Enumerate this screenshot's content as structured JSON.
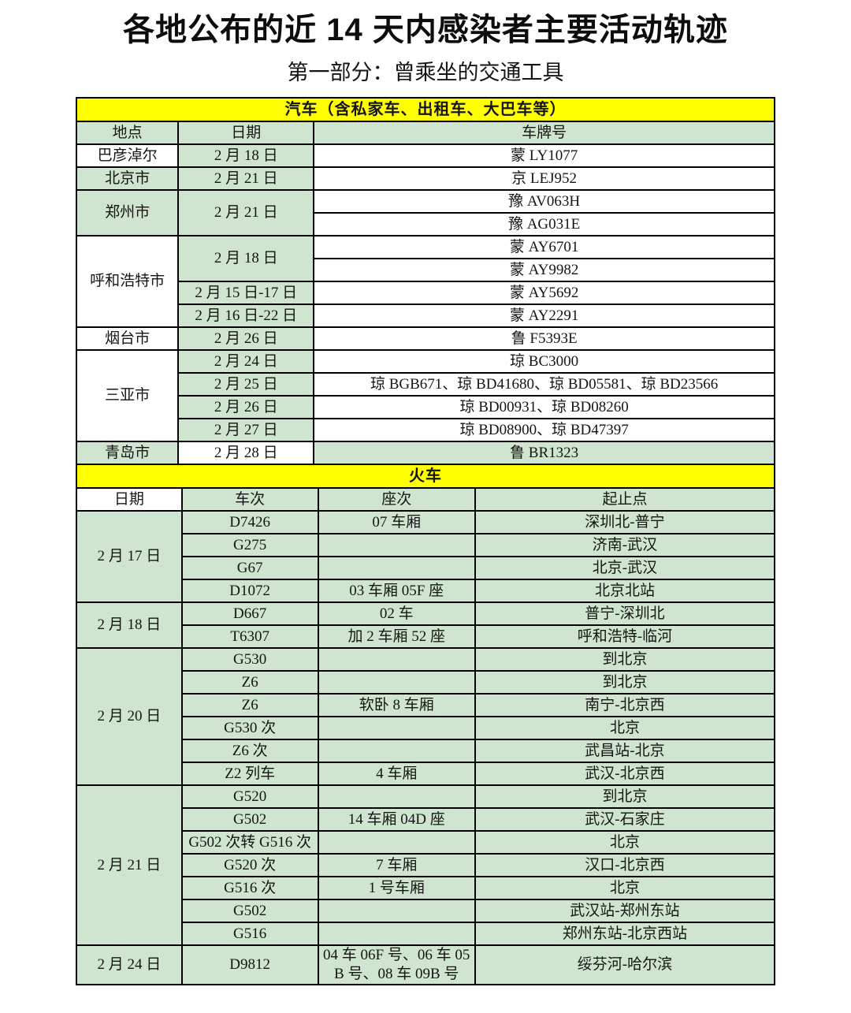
{
  "title": "各地公布的近 14 天内感染者主要活动轨迹",
  "subtitle": "第一部分：曾乘坐的交通工具",
  "colors": {
    "cell_green": "#cfe5cf",
    "banner_yellow": "#ffff00",
    "border_black": "#000000"
  },
  "car_table": {
    "banner": "汽车（含私家车、出租车、大巴车等）",
    "rows": [
      [
        {
          "t": "地点"
        },
        {
          "t": "日期"
        },
        {
          "t": "车牌号"
        }
      ],
      [
        {
          "t": "巴彦淖尔",
          "bg": "w"
        },
        {
          "t": "2 月 18 日"
        },
        {
          "t": "蒙 LY1077",
          "bg": "w"
        }
      ],
      [
        {
          "t": "北京市"
        },
        {
          "t": "2 月 21 日"
        },
        {
          "t": "京 LEJ952",
          "bg": "w"
        }
      ],
      [
        {
          "t": "郑州市",
          "rs": 2
        },
        {
          "t": "2 月 21 日",
          "rs": 2
        },
        {
          "t": "豫 AV063H",
          "bg": "w"
        }
      ],
      [
        {
          "t": "豫 AG031E",
          "bg": "w"
        }
      ],
      [
        {
          "t": "呼和浩特市",
          "bg": "w",
          "rs": 4
        },
        {
          "t": "2 月 18 日",
          "rs": 2
        },
        {
          "t": "蒙 AY6701",
          "bg": "w"
        }
      ],
      [
        {
          "t": "蒙 AY9982",
          "bg": "w"
        }
      ],
      [
        {
          "t": "2 月 15 日-17 日"
        },
        {
          "t": "蒙 AY5692",
          "bg": "w"
        }
      ],
      [
        {
          "t": "2 月 16 日-22 日"
        },
        {
          "t": "蒙 AY2291",
          "bg": "w"
        }
      ],
      [
        {
          "t": "烟台市",
          "bg": "w"
        },
        {
          "t": "2 月 26 日"
        },
        {
          "t": "鲁 F5393E",
          "bg": "w"
        }
      ],
      [
        {
          "t": "三亚市",
          "bg": "w",
          "rs": 4
        },
        {
          "t": "2 月 24 日"
        },
        {
          "t": "琼 BC3000",
          "bg": "w"
        }
      ],
      [
        {
          "t": "2 月 25 日"
        },
        {
          "t": "琼 BGB671、琼 BD41680、琼 BD05581、琼 BD23566",
          "bg": "w"
        }
      ],
      [
        {
          "t": "2 月 26 日"
        },
        {
          "t": "琼 BD00931、琼 BD08260",
          "bg": "w"
        }
      ],
      [
        {
          "t": "2 月 27 日"
        },
        {
          "t": "琼 BD08900、琼 BD47397",
          "bg": "w"
        }
      ],
      [
        {
          "t": "青岛市"
        },
        {
          "t": "2 月 28 日",
          "bg": "w"
        },
        {
          "t": "鲁 BR1323"
        }
      ]
    ]
  },
  "train_table": {
    "banner": "火车",
    "rows": [
      [
        {
          "t": "日期",
          "bg": "w"
        },
        {
          "t": "车次"
        },
        {
          "t": "座次"
        },
        {
          "t": "起止点"
        }
      ],
      [
        {
          "t": "2 月 17 日",
          "rs": 4
        },
        {
          "t": "D7426"
        },
        {
          "t": "07 车厢"
        },
        {
          "t": "深圳北-普宁"
        }
      ],
      [
        {
          "t": "G275"
        },
        {
          "t": ""
        },
        {
          "t": "济南-武汉"
        }
      ],
      [
        {
          "t": "G67"
        },
        {
          "t": ""
        },
        {
          "t": "北京-武汉"
        }
      ],
      [
        {
          "t": "D1072"
        },
        {
          "t": "03 车厢 05F 座"
        },
        {
          "t": "北京北站"
        }
      ],
      [
        {
          "t": "2 月 18 日",
          "rs": 2
        },
        {
          "t": "D667"
        },
        {
          "t": "02 车"
        },
        {
          "t": "普宁-深圳北"
        }
      ],
      [
        {
          "t": "T6307"
        },
        {
          "t": "加 2 车厢 52 座"
        },
        {
          "t": "呼和浩特-临河"
        }
      ],
      [
        {
          "t": "2 月 20 日",
          "rs": 6
        },
        {
          "t": "G530"
        },
        {
          "t": ""
        },
        {
          "t": "到北京"
        }
      ],
      [
        {
          "t": "Z6"
        },
        {
          "t": ""
        },
        {
          "t": "到北京"
        }
      ],
      [
        {
          "t": "Z6"
        },
        {
          "t": "软卧 8 车厢"
        },
        {
          "t": "南宁-北京西"
        }
      ],
      [
        {
          "t": "G530 次"
        },
        {
          "t": ""
        },
        {
          "t": "北京"
        }
      ],
      [
        {
          "t": "Z6 次"
        },
        {
          "t": ""
        },
        {
          "t": "武昌站-北京"
        }
      ],
      [
        {
          "t": "Z2 列车"
        },
        {
          "t": "4 车厢"
        },
        {
          "t": "武汉-北京西"
        }
      ],
      [
        {
          "t": "2 月 21 日",
          "rs": 7
        },
        {
          "t": "G520"
        },
        {
          "t": ""
        },
        {
          "t": "到北京"
        }
      ],
      [
        {
          "t": "G502"
        },
        {
          "t": "14 车厢 04D 座"
        },
        {
          "t": "武汉-石家庄"
        }
      ],
      [
        {
          "t": "G502 次转 G516 次"
        },
        {
          "t": ""
        },
        {
          "t": "北京"
        }
      ],
      [
        {
          "t": "G520 次"
        },
        {
          "t": "7 车厢"
        },
        {
          "t": "汉口-北京西"
        }
      ],
      [
        {
          "t": "G516 次"
        },
        {
          "t": "1 号车厢"
        },
        {
          "t": "北京"
        }
      ],
      [
        {
          "t": "G502"
        },
        {
          "t": ""
        },
        {
          "t": "武汉站-郑州东站"
        }
      ],
      [
        {
          "t": "G516"
        },
        {
          "t": ""
        },
        {
          "t": "郑州东站-北京西站"
        }
      ],
      [
        {
          "t": "2 月 24 日"
        },
        {
          "t": "D9812"
        },
        {
          "t": "04 车 06F 号、06 车 05B 号、08 车 09B 号"
        },
        {
          "t": "绥芬河-哈尔滨"
        }
      ]
    ]
  }
}
